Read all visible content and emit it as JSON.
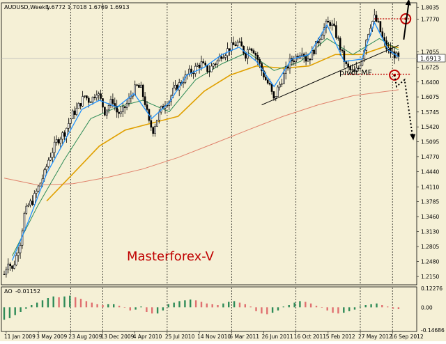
{
  "colors": {
    "background": "#f5f0d6",
    "candle": "#000000",
    "price_line": "#b4b4b4",
    "sma_short": "#1e90ff",
    "sma_mid": "#2e8b57",
    "sma_long": "#e0a000",
    "sma_200": "#e0806a",
    "trendline": "#000000",
    "level": "#c00000",
    "arrow": "#000000",
    "brand_text": "#c00000",
    "ao_up": "#2e8b57",
    "ao_down": "#e07070",
    "grid": "#000000"
  },
  "chart_data": [
    {
      "type": "candlestick",
      "title": "AUDUSD,Weekly  1.6772 1.7018 1.6769 1.6913",
      "symbol": "AUDUSD,Weekly",
      "ohlc_header": "1.6772 1.7018 1.6769 1.6913",
      "ylim": [
        1.2,
        1.81
      ],
      "y_ticks": [
        "1.8035",
        "1.7770",
        "1.7055",
        "1.6725",
        "1.6400",
        "1.6075",
        "1.5745",
        "1.5420",
        "1.5095",
        "1.4770",
        "1.4440",
        "1.4110",
        "1.3785",
        "1.3460",
        "1.3130",
        "1.2805",
        "1.2480",
        "1.2150"
      ],
      "current_price": "1.6913",
      "x_ticks": [
        "11 Jan 2009",
        "3 May 2009",
        "23 Aug 2009",
        "13 Dec 2009",
        "4 Apr 2010",
        "25 Jul 2010",
        "14 Nov 2010",
        "6 Mar 2011",
        "26 Jun 2011",
        "16 Oct 2011",
        "5 Feb 2012",
        "27 May 2012",
        "16 Sep 2012"
      ],
      "x_tick_dates": [
        "2009-01-11",
        "2009-05-03",
        "2009-08-23",
        "2009-12-13",
        "2010-04-04",
        "2010-07-25",
        "2010-11-14",
        "2011-03-06",
        "2011-06-26",
        "2011-10-16",
        "2012-02-05",
        "2012-05-27",
        "2012-09-16"
      ],
      "vertical_separators": [
        "2009-08-23",
        "2009-12-13",
        "2010-07-25",
        "2011-03-06",
        "2011-10-16",
        "2012-05-27",
        "2012-09-16"
      ],
      "price_path": [
        [
          "2009-01-04",
          1.22
        ],
        [
          "2009-01-18",
          1.25
        ],
        [
          "2009-02-01",
          1.23
        ],
        [
          "2009-02-15",
          1.26
        ],
        [
          "2009-03-01",
          1.29
        ],
        [
          "2009-03-15",
          1.35
        ],
        [
          "2009-03-29",
          1.37
        ],
        [
          "2009-04-12",
          1.38
        ],
        [
          "2009-04-26",
          1.4
        ],
        [
          "2009-05-10",
          1.42
        ],
        [
          "2009-05-24",
          1.44
        ],
        [
          "2009-06-07",
          1.47
        ],
        [
          "2009-06-21",
          1.49
        ],
        [
          "2009-07-05",
          1.51
        ],
        [
          "2009-07-19",
          1.52
        ],
        [
          "2009-08-02",
          1.53
        ],
        [
          "2009-08-16",
          1.55
        ],
        [
          "2009-08-30",
          1.57
        ],
        [
          "2009-09-13",
          1.58
        ],
        [
          "2009-09-27",
          1.595
        ],
        [
          "2009-10-11",
          1.61
        ],
        [
          "2009-10-25",
          1.6
        ],
        [
          "2009-11-08",
          1.605
        ],
        [
          "2009-11-22",
          1.62
        ],
        [
          "2009-12-06",
          1.6
        ],
        [
          "2009-12-20",
          1.575
        ],
        [
          "2010-01-03",
          1.59
        ],
        [
          "2010-01-17",
          1.6
        ],
        [
          "2010-01-31",
          1.575
        ],
        [
          "2010-02-14",
          1.57
        ],
        [
          "2010-02-28",
          1.585
        ],
        [
          "2010-03-14",
          1.6
        ],
        [
          "2010-03-28",
          1.62
        ],
        [
          "2010-04-11",
          1.63
        ],
        [
          "2010-04-25",
          1.625
        ],
        [
          "2010-05-09",
          1.595
        ],
        [
          "2010-05-23",
          1.55
        ],
        [
          "2010-06-06",
          1.535
        ],
        [
          "2010-06-20",
          1.56
        ],
        [
          "2010-07-04",
          1.58
        ],
        [
          "2010-07-18",
          1.595
        ],
        [
          "2010-08-01",
          1.6
        ],
        [
          "2010-08-15",
          1.62
        ],
        [
          "2010-08-29",
          1.63
        ],
        [
          "2010-09-12",
          1.64
        ],
        [
          "2010-09-26",
          1.65
        ],
        [
          "2010-10-10",
          1.66
        ],
        [
          "2010-10-24",
          1.665
        ],
        [
          "2010-11-07",
          1.675
        ],
        [
          "2010-11-21",
          1.68
        ],
        [
          "2010-12-05",
          1.67
        ],
        [
          "2010-12-19",
          1.665
        ],
        [
          "2011-01-02",
          1.68
        ],
        [
          "2011-01-16",
          1.685
        ],
        [
          "2011-01-30",
          1.7
        ],
        [
          "2011-02-13",
          1.705
        ],
        [
          "2011-02-27",
          1.715
        ],
        [
          "2011-03-13",
          1.72
        ],
        [
          "2011-03-27",
          1.725
        ],
        [
          "2011-04-10",
          1.715
        ],
        [
          "2011-04-24",
          1.7
        ],
        [
          "2011-05-08",
          1.72
        ],
        [
          "2011-05-22",
          1.71
        ],
        [
          "2011-06-05",
          1.69
        ],
        [
          "2011-06-19",
          1.665
        ],
        [
          "2011-07-03",
          1.645
        ],
        [
          "2011-07-17",
          1.63
        ],
        [
          "2011-07-31",
          1.6
        ],
        [
          "2011-08-14",
          1.625
        ],
        [
          "2011-08-28",
          1.645
        ],
        [
          "2011-09-11",
          1.665
        ],
        [
          "2011-09-25",
          1.685
        ],
        [
          "2011-10-09",
          1.69
        ],
        [
          "2011-10-23",
          1.7
        ],
        [
          "2011-11-06",
          1.71
        ],
        [
          "2011-11-20",
          1.69
        ],
        [
          "2011-12-04",
          1.695
        ],
        [
          "2011-12-18",
          1.71
        ],
        [
          "2012-01-01",
          1.73
        ],
        [
          "2012-01-15",
          1.75
        ],
        [
          "2012-01-29",
          1.765
        ],
        [
          "2012-02-12",
          1.77
        ],
        [
          "2012-02-26",
          1.755
        ],
        [
          "2012-03-11",
          1.73
        ],
        [
          "2012-03-25",
          1.7
        ],
        [
          "2012-04-08",
          1.675
        ],
        [
          "2012-04-22",
          1.665
        ],
        [
          "2012-05-06",
          1.66
        ],
        [
          "2012-05-20",
          1.67
        ],
        [
          "2012-06-03",
          1.695
        ],
        [
          "2012-06-17",
          1.735
        ],
        [
          "2012-07-01",
          1.765
        ],
        [
          "2012-07-15",
          1.78
        ],
        [
          "2012-07-29",
          1.765
        ],
        [
          "2012-08-12",
          1.735
        ],
        [
          "2012-08-26",
          1.715
        ],
        [
          "2012-09-09",
          1.705
        ],
        [
          "2012-09-23",
          1.7
        ],
        [
          "2012-10-07",
          1.69
        ]
      ],
      "sma_short": [
        [
          "2009-02-01",
          1.25
        ],
        [
          "2009-04-01",
          1.34
        ],
        [
          "2009-06-01",
          1.44
        ],
        [
          "2009-08-01",
          1.51
        ],
        [
          "2009-10-01",
          1.58
        ],
        [
          "2009-12-01",
          1.6
        ],
        [
          "2010-02-01",
          1.585
        ],
        [
          "2010-04-01",
          1.615
        ],
        [
          "2010-06-01",
          1.56
        ],
        [
          "2010-08-01",
          1.595
        ],
        [
          "2010-10-01",
          1.655
        ],
        [
          "2010-12-01",
          1.672
        ],
        [
          "2011-02-01",
          1.7
        ],
        [
          "2011-04-01",
          1.716
        ],
        [
          "2011-06-01",
          1.685
        ],
        [
          "2011-08-01",
          1.63
        ],
        [
          "2011-10-01",
          1.69
        ],
        [
          "2011-12-01",
          1.7
        ],
        [
          "2012-02-01",
          1.765
        ],
        [
          "2012-04-01",
          1.685
        ],
        [
          "2012-06-01",
          1.69
        ],
        [
          "2012-07-15",
          1.77
        ],
        [
          "2012-09-01",
          1.71
        ],
        [
          "2012-10-07",
          1.695
        ]
      ],
      "sma_mid": [
        [
          "2009-02-01",
          1.26
        ],
        [
          "2009-05-01",
          1.37
        ],
        [
          "2009-08-01",
          1.47
        ],
        [
          "2009-11-01",
          1.56
        ],
        [
          "2010-02-01",
          1.585
        ],
        [
          "2010-05-01",
          1.6
        ],
        [
          "2010-08-01",
          1.575
        ],
        [
          "2010-11-01",
          1.645
        ],
        [
          "2011-02-01",
          1.68
        ],
        [
          "2011-05-01",
          1.705
        ],
        [
          "2011-08-01",
          1.665
        ],
        [
          "2011-11-01",
          1.685
        ],
        [
          "2012-02-01",
          1.735
        ],
        [
          "2012-05-01",
          1.7
        ],
        [
          "2012-08-01",
          1.735
        ],
        [
          "2012-10-07",
          1.71
        ]
      ],
      "sma_long": [
        [
          "2009-06-01",
          1.38
        ],
        [
          "2009-09-01",
          1.44
        ],
        [
          "2009-12-01",
          1.5
        ],
        [
          "2010-03-01",
          1.535
        ],
        [
          "2010-06-01",
          1.55
        ],
        [
          "2010-09-01",
          1.565
        ],
        [
          "2010-12-01",
          1.62
        ],
        [
          "2011-03-01",
          1.655
        ],
        [
          "2011-06-01",
          1.675
        ],
        [
          "2011-09-01",
          1.67
        ],
        [
          "2011-12-01",
          1.675
        ],
        [
          "2012-03-01",
          1.7
        ],
        [
          "2012-06-01",
          1.7
        ],
        [
          "2012-09-01",
          1.72
        ],
        [
          "2012-10-07",
          1.715
        ]
      ],
      "sma_200": [
        [
          "2009-01-04",
          1.43
        ],
        [
          "2009-05-01",
          1.415
        ],
        [
          "2009-09-01",
          1.418
        ],
        [
          "2010-01-01",
          1.432
        ],
        [
          "2010-05-01",
          1.45
        ],
        [
          "2010-09-01",
          1.475
        ],
        [
          "2011-01-01",
          1.505
        ],
        [
          "2011-05-01",
          1.535
        ],
        [
          "2011-09-01",
          1.565
        ],
        [
          "2012-01-01",
          1.59
        ],
        [
          "2012-05-01",
          1.61
        ],
        [
          "2012-09-01",
          1.62
        ],
        [
          "2012-10-07",
          1.623
        ]
      ],
      "trendline": [
        [
          "2011-06-19",
          1.59
        ],
        [
          "2012-10-07",
          1.72
        ]
      ],
      "resistance_level": {
        "y": 1.778,
        "from": "2012-07-15",
        "to": "2012-11-20"
      },
      "pivot_level": {
        "y": 1.657,
        "from": "2012-04-01",
        "to": "2012-11-20"
      },
      "pivot_label": "pivot MF",
      "brand_label": "Masterforex-V",
      "circles": [
        [
          "2012-11-01",
          1.778
        ],
        [
          "2012-09-23",
          1.655
        ]
      ],
      "arrow_up": [
        [
          "2012-10-25",
          1.76
        ],
        [
          "2012-11-12",
          1.815
        ]
      ],
      "arrow_down_path": [
        [
          "2012-09-23",
          1.655
        ],
        [
          "2012-09-30",
          1.63
        ],
        [
          "2012-10-28",
          1.645
        ],
        [
          "2012-11-25",
          1.52
        ]
      ]
    },
    {
      "type": "bar",
      "title": "AO -0.01152",
      "indicator": "AO",
      "indicator_value": "-0.01152",
      "ylim": [
        -0.14686,
        0.12276
      ],
      "y_ticks": [
        "0.12276",
        "0.00",
        "-0.14686"
      ],
      "x_range": [
        "2009-01-04",
        "2012-10-07"
      ],
      "bar_color_up": "#2e8b57",
      "bar_color_down": "#e07070",
      "values": [
        -0.08,
        -0.07,
        -0.05,
        -0.03,
        -0.01,
        0.015,
        0.03,
        0.045,
        0.06,
        0.07,
        0.065,
        0.07,
        0.075,
        0.065,
        0.055,
        0.04,
        0.03,
        0.02,
        0.015,
        0.02,
        0.02,
        0.01,
        0.0,
        -0.02,
        -0.015,
        0.005,
        -0.03,
        -0.04,
        -0.04,
        -0.02,
        0.02,
        0.03,
        0.04,
        0.045,
        0.05,
        0.045,
        0.035,
        0.025,
        0.02,
        0.015,
        0.025,
        0.035,
        0.04,
        0.03,
        0.02,
        0.005,
        -0.025,
        -0.04,
        -0.045,
        -0.035,
        -0.02,
        0.005,
        0.015,
        0.03,
        0.04,
        0.035,
        0.025,
        0.01,
        0.0,
        -0.02,
        -0.035,
        -0.04,
        -0.035,
        -0.025,
        -0.015,
        0.005,
        0.015,
        0.02,
        0.025,
        0.015,
        0.005,
        -0.01,
        -0.012
      ]
    }
  ]
}
